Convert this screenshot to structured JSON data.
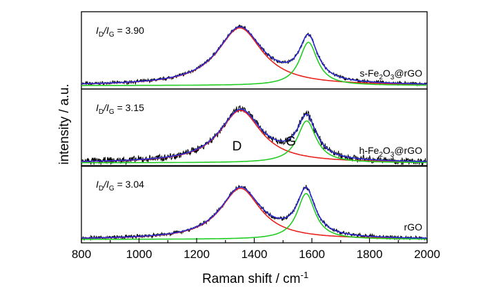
{
  "chart_data": {
    "type": "line",
    "title": "",
    "xlabel": "Raman shift / cm",
    "xlabel_superscript": "-1",
    "ylabel": "intensity / a.u.",
    "xlim": [
      800,
      2000
    ],
    "xticks": [
      "800",
      "1000",
      "1200",
      "1400",
      "1600",
      "1800",
      "2000"
    ],
    "grid": false,
    "legend": "none",
    "colors": {
      "raw": "#000000",
      "d_fit": "#e8211b",
      "g_fit": "#22cc22",
      "total_fit": "#2b2bd6"
    },
    "peak_labels": {
      "d": "D",
      "g": "G"
    },
    "panels": [
      {
        "ratio_num": "I",
        "ratio_num_sub": "D",
        "ratio_den": "I",
        "ratio_den_sub": "G",
        "ratio_value": "= 3.90",
        "sample_pre": "s-Fe",
        "sample_sub1": "2",
        "sample_mid": "O",
        "sample_sub2": "3",
        "sample_post": "@rGO",
        "peaks": {
          "D": {
            "center": 1350,
            "height": 0.88,
            "hwhm": 95
          },
          "G": {
            "center": 1588,
            "height": 0.66,
            "hwhm": 38
          }
        },
        "noise": 0.022,
        "show_peak_labels": false
      },
      {
        "ratio_num": "I",
        "ratio_num_sub": "D",
        "ratio_den": "I",
        "ratio_den_sub": "G",
        "ratio_value": "= 3.15",
        "sample_pre": "h-Fe",
        "sample_sub1": "2",
        "sample_mid": "O",
        "sample_sub2": "3",
        "sample_post": "@rGO",
        "peaks": {
          "D": {
            "center": 1352,
            "height": 0.8,
            "hwhm": 88
          },
          "G": {
            "center": 1582,
            "height": 0.64,
            "hwhm": 40
          }
        },
        "noise": 0.045,
        "show_peak_labels": true
      },
      {
        "ratio_num": "I",
        "ratio_num_sub": "D",
        "ratio_den": "I",
        "ratio_den_sub": "G",
        "ratio_value": "= 3.04",
        "sample_pre": "rGO",
        "sample_sub1": "",
        "sample_mid": "",
        "sample_sub2": "",
        "sample_post": "",
        "peaks": {
          "D": {
            "center": 1352,
            "height": 0.78,
            "hwhm": 85
          },
          "G": {
            "center": 1580,
            "height": 0.7,
            "hwhm": 38
          }
        },
        "noise": 0.025,
        "show_peak_labels": false
      }
    ]
  }
}
